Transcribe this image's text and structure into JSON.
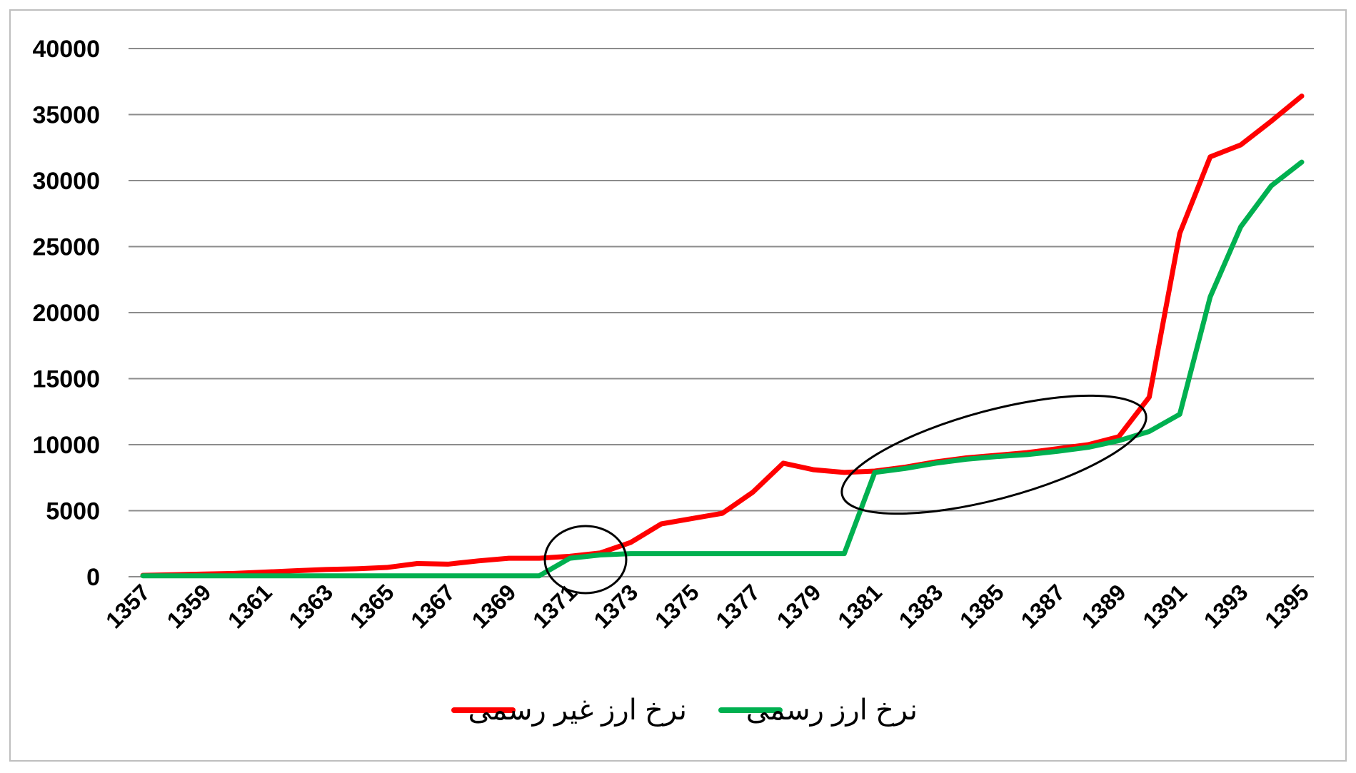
{
  "chart_data": {
    "type": "line",
    "title": "",
    "xlabel": "",
    "ylabel": "",
    "ylim": [
      0,
      40000
    ],
    "yticks": [
      0,
      5000,
      10000,
      15000,
      20000,
      25000,
      30000,
      35000,
      40000
    ],
    "y_tick_labels": [
      "0",
      "5000",
      "10000",
      "15000",
      "20000",
      "25000",
      "30000",
      "35000",
      "40000"
    ],
    "x": [
      1357,
      1358,
      1359,
      1360,
      1361,
      1362,
      1363,
      1364,
      1365,
      1366,
      1367,
      1368,
      1369,
      1370,
      1371,
      1372,
      1373,
      1374,
      1375,
      1376,
      1377,
      1378,
      1379,
      1380,
      1381,
      1382,
      1383,
      1384,
      1385,
      1386,
      1387,
      1388,
      1389,
      1390,
      1391,
      1392,
      1393,
      1394,
      1395
    ],
    "x_tick_labels": [
      "1357",
      "1359",
      "1361",
      "1363",
      "1365",
      "1367",
      "1369",
      "1371",
      "1373",
      "1375",
      "1377",
      "1379",
      "1381",
      "1383",
      "1385",
      "1387",
      "1389",
      "1391",
      "1393",
      "1395"
    ],
    "grid": true,
    "legend_position": "bottom",
    "series": [
      {
        "name": "نرخ ارز غیر رسمی",
        "color": "#ff0000",
        "values": [
          100,
          150,
          200,
          250,
          350,
          450,
          550,
          600,
          700,
          1000,
          950,
          1200,
          1400,
          1400,
          1550,
          1800,
          2600,
          4000,
          4400,
          4800,
          6400,
          8600,
          8100,
          7900,
          8000,
          8300,
          8700,
          9000,
          9200,
          9400,
          9700,
          10000,
          10600,
          13600,
          26000,
          31800,
          32700,
          34500,
          36400
        ]
      },
      {
        "name": "نرخ ارز رسمی",
        "color": "#00b050",
        "values": [
          70,
          70,
          70,
          70,
          70,
          70,
          70,
          70,
          70,
          70,
          70,
          70,
          70,
          70,
          1400,
          1650,
          1750,
          1750,
          1750,
          1750,
          1750,
          1750,
          1750,
          1750,
          7900,
          8200,
          8600,
          8900,
          9100,
          9250,
          9500,
          9800,
          10300,
          11000,
          12300,
          21200,
          26500,
          29600,
          31400
        ]
      }
    ],
    "annotations": [
      {
        "shape": "ellipse",
        "around": "1371-1373"
      },
      {
        "shape": "ellipse",
        "around": "1381-1389"
      }
    ]
  }
}
